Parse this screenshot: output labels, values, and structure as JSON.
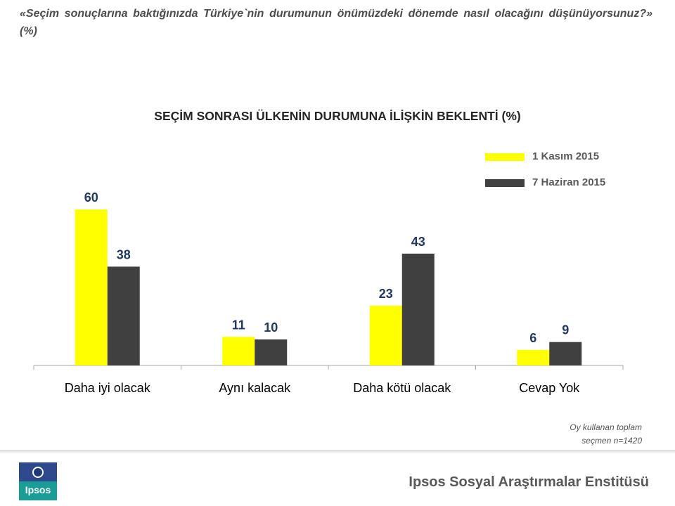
{
  "question": "«Seçim sonuçlarına baktığınızda Türkiye`nin durumunun önümüzdeki dönemde nasıl olacağını düşünüyorsunuz?»  (%)",
  "colors": {
    "series1": "#ffff00",
    "series2": "#404040",
    "value_label": "#1f3864"
  },
  "chart_data": {
    "type": "bar",
    "title": "SEÇİM SONRASI ÜLKENİN DURUMUNA İLİŞKİN BEKLENTİ (%)",
    "categories": [
      "Daha iyi olacak",
      "Aynı kalacak",
      "Daha kötü olacak",
      "Cevap Yok"
    ],
    "series": [
      {
        "name": "1 Kasım 2015",
        "values": [
          60,
          11,
          23,
          6
        ],
        "color": "#ffff00"
      },
      {
        "name": "7 Haziran 2015",
        "values": [
          38,
          10,
          43,
          9
        ],
        "color": "#404040"
      }
    ],
    "ylim": [
      0,
      70
    ],
    "grid": false,
    "legend": "top-right",
    "data_labels": true
  },
  "footnote": {
    "line1": "Oy kullanan toplam",
    "line2": "seçmen n=1420"
  },
  "logo": {
    "text": "Ipsos"
  },
  "institute": "Ipsos Sosyal Araştırmalar Enstitüsü"
}
